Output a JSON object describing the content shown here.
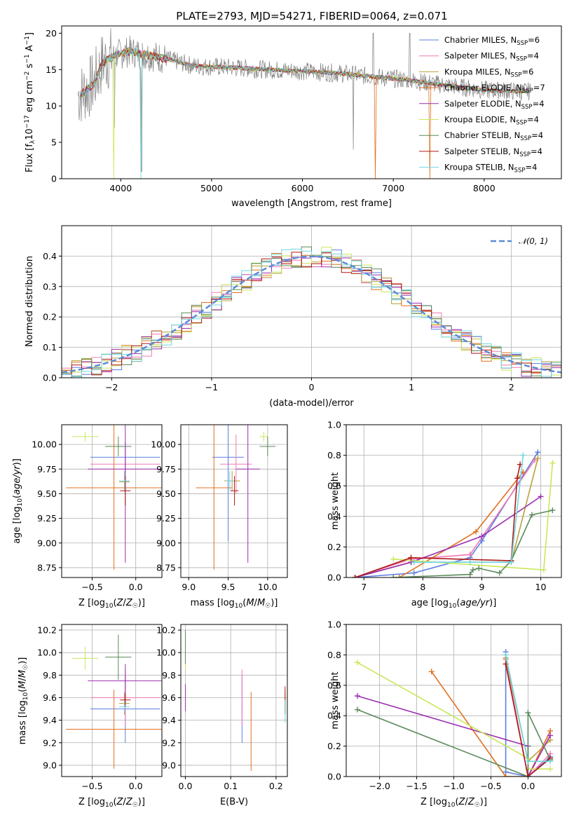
{
  "title": "PLATE=2793, MJD=54271, FIBERID=0064, z=0.071",
  "colors": {
    "Chabrier MILES": "#5b7fe0",
    "Salpeter MILES": "#f07ab2",
    "Kroupa MILES": "#b8a13a",
    "Chabrier ELODIE": "#e07020",
    "Salpeter ELODIE": "#9b2fb0",
    "Kroupa ELODIE": "#c8e85a",
    "Chabrier STELIB": "#5a8a5a",
    "Salpeter STELIB": "#b01818",
    "Kroupa STELIB": "#6ed6e0",
    "data": "#808080",
    "gaussian": "#5b8bd6"
  },
  "chart_data": [
    {
      "id": "spectrum",
      "type": "line",
      "xlabel": "wavelength [Angstrom, rest frame]",
      "ylabel": "Flux [f_λ10^-17 erg cm^-2 s^-1 A^-1]",
      "xlim": [
        3350,
        8850
      ],
      "ylim": [
        0,
        21
      ],
      "xticks": [
        4000,
        5000,
        6000,
        7000,
        8000
      ],
      "yticks": [
        0,
        5,
        10,
        15,
        20
      ],
      "legend_position": "upper right",
      "legend": [
        {
          "base": "Chabrier MILES, N",
          "sub": "SSP",
          "tail": "=6"
        },
        {
          "base": "Salpeter MILES, N",
          "sub": "SSP",
          "tail": "=4"
        },
        {
          "base": "Kroupa MILES, N",
          "sub": "SSP",
          "tail": "=6"
        },
        {
          "base": "Chabrier ELODIE, N",
          "sub": "SSP",
          "tail": "=7"
        },
        {
          "base": "Salpeter ELODIE, N",
          "sub": "SSP",
          "tail": "=4"
        },
        {
          "base": "Kroupa ELODIE, N",
          "sub": "SSP",
          "tail": "=4"
        },
        {
          "base": "Chabrier STELIB, N",
          "sub": "SSP",
          "tail": "=4"
        },
        {
          "base": "Salpeter STELIB, N",
          "sub": "SSP",
          "tail": "=4"
        },
        {
          "base": "Kroupa STELIB, N",
          "sub": "SSP",
          "tail": "=4"
        }
      ],
      "continuum": [
        [
          3550,
          11.5
        ],
        [
          3700,
          13
        ],
        [
          3800,
          16
        ],
        [
          3950,
          17
        ],
        [
          4100,
          17.5
        ],
        [
          4300,
          17
        ],
        [
          4500,
          16.5
        ],
        [
          4800,
          15.5
        ],
        [
          5200,
          15.3
        ],
        [
          5600,
          15
        ],
        [
          6000,
          14.8
        ],
        [
          6400,
          14.5
        ],
        [
          6800,
          14
        ],
        [
          7200,
          13.5
        ],
        [
          7600,
          12.8
        ],
        [
          8000,
          12.2
        ],
        [
          8400,
          12
        ],
        [
          8500,
          12
        ]
      ]
    },
    {
      "id": "residuals",
      "type": "line",
      "xlabel": "(data-model)/error",
      "ylabel": "Normed distribution",
      "xlim": [
        -2.5,
        2.5
      ],
      "ylim": [
        0,
        0.5
      ],
      "xticks": [
        -2,
        -1,
        0,
        1,
        2
      ],
      "yticks": [
        0.0,
        0.1,
        0.2,
        0.3,
        0.4
      ],
      "legend": [
        "𝒩(0, 1)"
      ],
      "legend_position": "upper right",
      "grid": true
    },
    {
      "id": "age_vs_Z",
      "type": "scatter",
      "xlabel": "Z [log10(Z/Z☉)]",
      "ylabel": "age  [log10(age/yr)]",
      "xlim": [
        -0.85,
        0.3
      ],
      "ylim": [
        8.65,
        10.2
      ],
      "xticks": [
        -0.5,
        0.0
      ],
      "yticks": [
        8.75,
        9.0,
        9.25,
        9.5,
        9.75,
        10.0
      ],
      "grid": true,
      "points": [
        {
          "series": "Chabrier MILES",
          "x": -0.12,
          "xerr": 0.4,
          "y": 9.87,
          "yerr": 0.15
        },
        {
          "series": "Salpeter MILES",
          "x": -0.12,
          "xerr": 0.4,
          "y": 9.8,
          "yerr": 0.15
        },
        {
          "series": "Kroupa MILES",
          "x": -0.13,
          "xerr": 0.06,
          "y": 9.62,
          "yerr": 0.1
        },
        {
          "series": "Chabrier ELODIE",
          "x": -0.25,
          "xerr": 0.55,
          "y": 9.56,
          "yerr": 0.83
        },
        {
          "series": "Salpeter ELODIE",
          "x": -0.12,
          "xerr": 0.43,
          "y": 9.75,
          "yerr": 0.95
        },
        {
          "series": "Kroupa ELODIE",
          "x": -0.58,
          "xerr": 0.15,
          "y": 10.08,
          "yerr": 0.05
        },
        {
          "series": "Chabrier STELIB",
          "x": -0.2,
          "xerr": 0.15,
          "y": 9.98,
          "yerr": 0.1
        },
        {
          "series": "Salpeter STELIB",
          "x": -0.12,
          "xerr": 0.06,
          "y": 9.53,
          "yerr": 0.15
        },
        {
          "series": "Kroupa STELIB",
          "x": -0.13,
          "xerr": 0.06,
          "y": 9.63,
          "yerr": 0.1
        }
      ]
    },
    {
      "id": "age_vs_mass",
      "type": "scatter",
      "xlabel": "mass [log10(M/M☉)]",
      "ylabel": "",
      "xlim": [
        8.9,
        10.25
      ],
      "ylim": [
        8.65,
        10.2
      ],
      "xticks": [
        9.0,
        9.5,
        10.0
      ],
      "yticks": [
        8.75,
        9.0,
        9.25,
        9.5,
        9.75,
        10.0
      ],
      "grid": true,
      "points": [
        {
          "series": "Chabrier MILES",
          "x": 9.5,
          "xerr": 0.2,
          "y": 9.87,
          "yerr": 0.85
        },
        {
          "series": "Salpeter MILES",
          "x": 9.6,
          "xerr": 0.2,
          "y": 9.8,
          "yerr": 0.3
        },
        {
          "series": "Kroupa MILES",
          "x": 9.55,
          "xerr": 0.1,
          "y": 9.63,
          "yerr": 0.1
        },
        {
          "series": "Chabrier ELODIE",
          "x": 9.32,
          "xerr": 0.23,
          "y": 9.56,
          "yerr": 0.83
        },
        {
          "series": "Salpeter ELODIE",
          "x": 9.75,
          "xerr": 0.15,
          "y": 9.75,
          "yerr": 0.95
        },
        {
          "series": "Kroupa ELODIE",
          "x": 9.95,
          "xerr": 0.05,
          "y": 10.08,
          "yerr": 0.05
        },
        {
          "series": "Chabrier STELIB",
          "x": 10.0,
          "xerr": 0.1,
          "y": 9.98,
          "yerr": 0.1
        },
        {
          "series": "Salpeter STELIB",
          "x": 9.58,
          "xerr": 0.05,
          "y": 9.53,
          "yerr": 0.15
        },
        {
          "series": "Kroupa STELIB",
          "x": 9.52,
          "xerr": 0.05,
          "y": 9.63,
          "yerr": 0.1
        }
      ]
    },
    {
      "id": "weight_vs_age",
      "type": "line",
      "xlabel": "age  [log10(age/yr)]",
      "ylabel": "mass weight",
      "xlim": [
        6.7,
        10.35
      ],
      "ylim": [
        0,
        1.0
      ],
      "xticks": [
        7,
        8,
        9,
        10
      ],
      "yticks": [
        0.0,
        0.2,
        0.4,
        0.6,
        0.8,
        1.0
      ],
      "grid": true,
      "series": [
        {
          "name": "Chabrier MILES",
          "x": [
            6.85,
            7.85,
            8.8,
            9.0,
            9.95
          ],
          "y": [
            0.0,
            0.03,
            0.13,
            0.24,
            0.82
          ]
        },
        {
          "name": "Salpeter MILES",
          "x": [
            6.85,
            7.8,
            8.8,
            9.9
          ],
          "y": [
            0.0,
            0.12,
            0.15,
            0.77
          ]
        },
        {
          "name": "Kroupa MILES",
          "x": [
            6.85,
            7.8,
            9.5,
            9.95
          ],
          "y": [
            0.0,
            0.1,
            0.1,
            0.78
          ]
        },
        {
          "name": "Chabrier ELODIE",
          "x": [
            7.6,
            8.9,
            9.7
          ],
          "y": [
            0.0,
            0.3,
            0.69
          ]
        },
        {
          "name": "Salpeter ELODIE",
          "x": [
            6.85,
            7.8,
            9.0,
            10.0
          ],
          "y": [
            0.0,
            0.1,
            0.27,
            0.53
          ]
        },
        {
          "name": "Kroupa ELODIE",
          "x": [
            7.5,
            10.05,
            10.2
          ],
          "y": [
            0.12,
            0.05,
            0.75
          ]
        },
        {
          "name": "Chabrier STELIB",
          "x": [
            7.5,
            8.8,
            8.85,
            8.95,
            9.3,
            9.5,
            9.85,
            10.2
          ],
          "y": [
            0.0,
            0.02,
            0.05,
            0.06,
            0.03,
            0.11,
            0.41,
            0.44
          ]
        },
        {
          "name": "Salpeter STELIB",
          "x": [
            6.85,
            7.8,
            9.5,
            9.6,
            9.65
          ],
          "y": [
            0.0,
            0.13,
            0.11,
            0.65,
            0.74
          ]
        },
        {
          "name": "Kroupa STELIB",
          "x": [
            7.85,
            8.8,
            9.5,
            9.7
          ],
          "y": [
            0.1,
            0.1,
            0.1,
            0.8
          ]
        }
      ]
    },
    {
      "id": "mass_vs_Z",
      "type": "scatter",
      "xlabel": "Z [log10(Z/Z☉)]",
      "ylabel": "mass [log10(M/M☉)]",
      "xlim": [
        -0.85,
        0.3
      ],
      "ylim": [
        8.9,
        10.25
      ],
      "xticks": [
        -0.5,
        0.0
      ],
      "yticks": [
        9.0,
        9.2,
        9.4,
        9.6,
        9.8,
        10.0,
        10.2
      ],
      "grid": true,
      "points": [
        {
          "series": "Chabrier MILES",
          "x": -0.12,
          "xerr": 0.4,
          "y": 9.5,
          "yerr": 0.3
        },
        {
          "series": "Salpeter MILES",
          "x": -0.12,
          "xerr": 0.4,
          "y": 9.6,
          "yerr": 0.25
        },
        {
          "series": "Kroupa MILES",
          "x": -0.13,
          "xerr": 0.06,
          "y": 9.55,
          "yerr": 0.1
        },
        {
          "series": "Chabrier ELODIE",
          "x": -0.25,
          "xerr": 0.55,
          "y": 9.32,
          "yerr": 0.35
        },
        {
          "series": "Salpeter ELODIE",
          "x": -0.12,
          "xerr": 0.43,
          "y": 9.75,
          "yerr": 0.15
        },
        {
          "series": "Kroupa ELODIE",
          "x": -0.58,
          "xerr": 0.15,
          "y": 9.95,
          "yerr": 0.1
        },
        {
          "series": "Chabrier STELIB",
          "x": -0.2,
          "xerr": 0.15,
          "y": 9.96,
          "yerr": 0.2
        },
        {
          "series": "Salpeter STELIB",
          "x": -0.12,
          "xerr": 0.06,
          "y": 9.58,
          "yerr": 0.05
        },
        {
          "series": "Kroupa STELIB",
          "x": -0.13,
          "xerr": 0.06,
          "y": 9.52,
          "yerr": 0.05
        }
      ]
    },
    {
      "id": "mass_vs_EBV",
      "type": "scatter",
      "xlabel": "E(B-V)",
      "ylabel": "",
      "xlim": [
        -0.01,
        0.225
      ],
      "ylim": [
        8.9,
        10.25
      ],
      "xticks": [
        0.0,
        0.1,
        0.2
      ],
      "yticks": [
        9.0,
        9.2,
        9.4,
        9.6,
        9.8,
        10.0,
        10.2
      ],
      "grid": true,
      "points": [
        {
          "series": "Chabrier MILES",
          "x": 0.125,
          "y": 9.5,
          "yerr": 0.3
        },
        {
          "series": "Salpeter MILES",
          "x": 0.125,
          "y": 9.6,
          "yerr": 0.25
        },
        {
          "series": "Kroupa MILES",
          "x": 0.22,
          "y": 9.55,
          "yerr": 0.1
        },
        {
          "series": "Chabrier ELODIE",
          "x": 0.145,
          "y": 9.3,
          "yerr": 0.35
        },
        {
          "series": "Salpeter ELODIE",
          "x": 0.0,
          "y": 9.6,
          "yerr": 0.12
        },
        {
          "series": "Kroupa ELODIE",
          "x": 0.0,
          "y": 9.95,
          "yerr": 0.1
        },
        {
          "series": "Chabrier STELIB",
          "x": 0.0,
          "y": 10.05,
          "yerr": 0.15
        },
        {
          "series": "Salpeter STELIB",
          "x": 0.22,
          "y": 9.58,
          "yerr": 0.12
        },
        {
          "series": "Kroupa STELIB",
          "x": 0.22,
          "y": 9.48,
          "yerr": 0.1
        }
      ]
    },
    {
      "id": "weight_vs_Z",
      "type": "line",
      "xlabel": "Z [log10(Z/Z☉)]",
      "ylabel": "mass weight",
      "xlim": [
        -2.45,
        0.45
      ],
      "ylim": [
        0,
        1.0
      ],
      "xticks": [
        -2.0,
        -1.5,
        -1.0,
        -0.5,
        0.0
      ],
      "yticks": [
        0.0,
        0.2,
        0.4,
        0.6,
        0.8,
        1.0
      ],
      "grid": true,
      "series": [
        {
          "name": "Chabrier MILES",
          "x": [
            -0.3,
            -0.3,
            0.0,
            0.3
          ],
          "y": [
            0.82,
            0.03,
            0.0,
            0.13
          ]
        },
        {
          "name": "Salpeter MILES",
          "x": [
            -0.3,
            0.0,
            0.3
          ],
          "y": [
            0.77,
            0.0,
            0.15
          ]
        },
        {
          "name": "Kroupa MILES",
          "x": [
            -0.3,
            0.0,
            0.3
          ],
          "y": [
            0.78,
            0.1,
            0.24
          ]
        },
        {
          "name": "Chabrier ELODIE",
          "x": [
            -1.3,
            -0.3,
            0.0,
            0.3
          ],
          "y": [
            0.69,
            0.0,
            0.0,
            0.3
          ]
        },
        {
          "name": "Salpeter ELODIE",
          "x": [
            -2.3,
            0.0,
            0.0,
            0.3
          ],
          "y": [
            0.53,
            0.2,
            0.0,
            0.27
          ]
        },
        {
          "name": "Kroupa ELODIE",
          "x": [
            -2.3,
            0.0,
            0.0,
            0.3
          ],
          "y": [
            0.75,
            0.12,
            0.05,
            0.05
          ]
        },
        {
          "name": "Chabrier STELIB",
          "x": [
            -2.3,
            0.0,
            0.0,
            0.3
          ],
          "y": [
            0.44,
            0.0,
            0.42,
            0.11
          ]
        },
        {
          "name": "Salpeter STELIB",
          "x": [
            -0.3,
            0.0,
            0.3
          ],
          "y": [
            0.74,
            0.0,
            0.12
          ]
        },
        {
          "name": "Kroupa STELIB",
          "x": [
            -0.3,
            0.0,
            0.3
          ],
          "y": [
            0.8,
            0.1,
            0.1
          ]
        }
      ]
    }
  ]
}
